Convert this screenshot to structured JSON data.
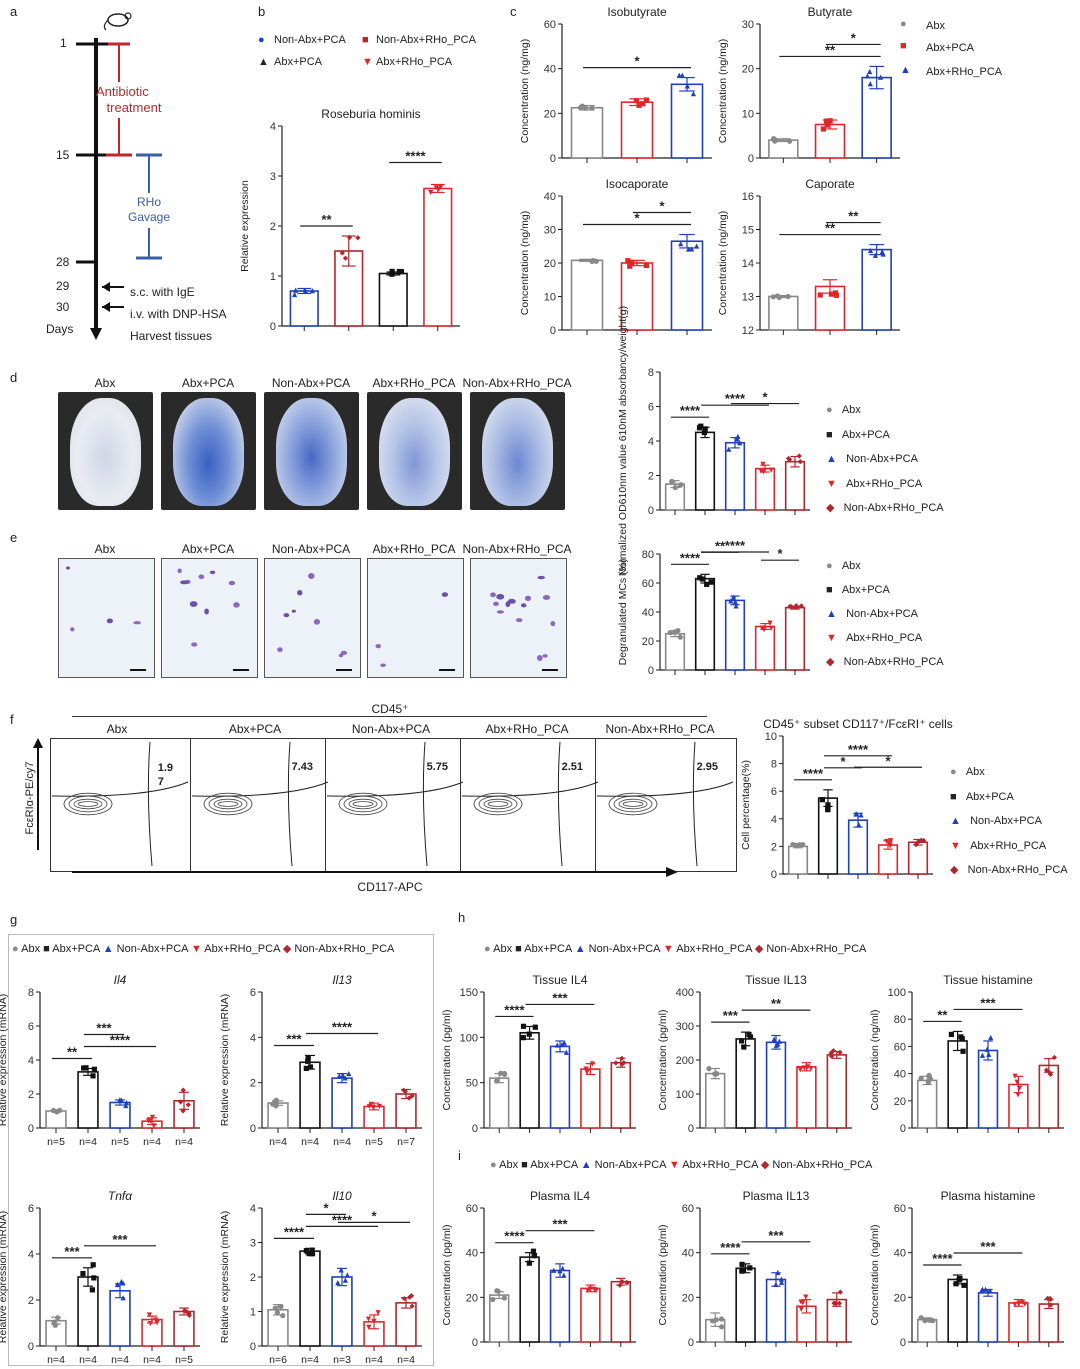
{
  "panel_letters": [
    "a",
    "b",
    "c",
    "d",
    "e",
    "f",
    "g",
    "h",
    "i"
  ],
  "timeline": {
    "days": [
      "1",
      "15",
      "28",
      "29",
      "30"
    ],
    "days_label": "Days",
    "antibiotic": [
      "Antibiotic",
      "treatment"
    ],
    "rho": [
      "RHo",
      "Gavage"
    ],
    "steps": [
      "s.c. with IgE",
      "i.v. with DNP-HSA",
      "Harvest tissues"
    ],
    "colors": {
      "antibiotic": "#c0272d",
      "rho": "#3b5ea8"
    }
  },
  "groups": {
    "abx": {
      "label": "Abx",
      "color": "#888888"
    },
    "abx_pca": {
      "label": "Abx+PCA",
      "color": "#111111"
    },
    "nonabx_pca": {
      "label": "Non-Abx+PCA",
      "color": "#1f3fbf"
    },
    "abx_rho": {
      "label": "Abx+RHo_PCA",
      "color": "#e0262c"
    },
    "nonabx_rho": {
      "label": "Non-Abx+RHo_PCA",
      "color": "#b3262c"
    }
  },
  "panel_b_legend": [
    "Non-Abx+PCA",
    "Non-Abx+RHo_PCA",
    "Abx+PCA",
    "Abx+RHo_PCA"
  ],
  "panel_c_legend": [
    "Abx",
    "Abx+PCA",
    "Abx+RHo_PCA"
  ],
  "panel_d": {
    "labels": [
      "Abx",
      "Abx+PCA",
      "Non-Abx+PCA",
      "Abx+RHo_PCA",
      "Non-Abx+RHo_PCA"
    ]
  },
  "panel_e": {
    "labels": [
      "Abx",
      "Abx+PCA",
      "Non-Abx+PCA",
      "Abx+RHo_PCA",
      "Non-Abx+RHo_PCA"
    ]
  },
  "panel_f": {
    "header": "CD45⁺",
    "labels": [
      "Abx",
      "Abx+PCA",
      "Non-Abx+PCA",
      "Abx+RHo_PCA",
      "Non-Abx+RHo_PCA"
    ],
    "values": [
      "1.9\n7",
      "7.43",
      "5.75",
      "2.51",
      "2.95"
    ],
    "ylabel": "FcεRIα-PE/cy7",
    "xlabel": "CD117-APC"
  },
  "legend_g": [
    "Abx",
    "Abx+PCA",
    "Non-Abx+PCA",
    "Abx+RHo_PCA",
    "Non-Abx+RHo_PCA"
  ],
  "legend_5": [
    "Abx",
    "Abx+PCA",
    "Non-Abx+PCA",
    "Abx+RHo_PCA",
    "Non-Abx+RHo_PCA"
  ],
  "chart_data": [
    {
      "id": "b",
      "type": "bar",
      "title": "Roseburia hominis",
      "ylabel": "Relative expression",
      "ylim": [
        0,
        4
      ],
      "yticks": [
        0,
        1,
        2,
        3,
        4
      ],
      "bars": [
        {
          "g": "nonabx_pca",
          "v": 0.7,
          "e": 0.05
        },
        {
          "g": "nonabx_rho",
          "v": 1.5,
          "e": 0.3
        },
        {
          "g": "abx_pca",
          "v": 1.05,
          "e": 0.03
        },
        {
          "g": "abx_rho",
          "v": 2.75,
          "e": 0.08
        }
      ],
      "sig": [
        {
          "a": 0,
          "b": 1,
          "t": "**"
        },
        {
          "a": 2,
          "b": 3,
          "t": "****"
        }
      ]
    },
    {
      "id": "c1",
      "type": "bar",
      "title": "Isobutyrate",
      "ylabel": "Concentration (ng/mg)",
      "ylim": [
        0,
        60
      ],
      "yticks": [
        0,
        20,
        40,
        60
      ],
      "bars": [
        {
          "g": "abx",
          "v": 22.5,
          "e": 1
        },
        {
          "g": "abx_rho_red",
          "v": 25,
          "e": 1.5
        },
        {
          "g": "abx_rho_blue",
          "v": 33,
          "e": 3
        }
      ],
      "sig": [
        {
          "a": 0,
          "b": 2,
          "t": "*"
        }
      ]
    },
    {
      "id": "c2",
      "type": "bar",
      "title": "Butyrate",
      "ylabel": "Concentration (ng/mg)",
      "ylim": [
        0,
        30
      ],
      "yticks": [
        0,
        10,
        20,
        30
      ],
      "bars": [
        {
          "g": "abx",
          "v": 4,
          "e": 0.3
        },
        {
          "g": "abx_rho_red",
          "v": 7.5,
          "e": 1
        },
        {
          "g": "abx_rho_blue",
          "v": 18,
          "e": 2.5
        }
      ],
      "sig": [
        {
          "a": 0,
          "b": 2,
          "t": "**"
        },
        {
          "a": 1,
          "b": 2,
          "t": "*"
        }
      ]
    },
    {
      "id": "c3",
      "type": "bar",
      "title": "Isocaporate",
      "ylabel": "Concentration (ng/mg)",
      "ylim": [
        0,
        40
      ],
      "yticks": [
        0,
        10,
        20,
        30,
        40
      ],
      "bars": [
        {
          "g": "abx",
          "v": 20.8,
          "e": 0.3
        },
        {
          "g": "abx_rho_red",
          "v": 20,
          "e": 0.8
        },
        {
          "g": "abx_rho_blue",
          "v": 26.5,
          "e": 2
        }
      ],
      "sig": [
        {
          "a": 0,
          "b": 2,
          "t": "*"
        },
        {
          "a": 1,
          "b": 2,
          "t": "*"
        }
      ]
    },
    {
      "id": "c4",
      "type": "bar",
      "title": "Caporate",
      "ylabel": "Concentration (ng/mg)",
      "ylim": [
        12,
        16
      ],
      "yticks": [
        12,
        13,
        14,
        15,
        16
      ],
      "bars": [
        {
          "g": "abx",
          "v": 13,
          "e": 0.03
        },
        {
          "g": "abx_rho_red",
          "v": 13.3,
          "e": 0.2
        },
        {
          "g": "abx_rho_blue",
          "v": 14.4,
          "e": 0.15
        }
      ],
      "sig": [
        {
          "a": 0,
          "b": 2,
          "t": "**"
        },
        {
          "a": 1,
          "b": 2,
          "t": "**"
        }
      ]
    },
    {
      "id": "d",
      "type": "bar",
      "title": "",
      "ylabel": "Normalized OD610nm value 610nM absorbancy/weight(g)",
      "ylim": [
        0,
        8
      ],
      "yticks": [
        0,
        2,
        4,
        6,
        8
      ],
      "bars": [
        {
          "g": "abx",
          "v": 1.5,
          "e": 0.2
        },
        {
          "g": "abx_pca",
          "v": 4.5,
          "e": 0.3
        },
        {
          "g": "nonabx_pca",
          "v": 3.9,
          "e": 0.3
        },
        {
          "g": "abx_rho",
          "v": 2.4,
          "e": 0.2
        },
        {
          "g": "nonabx_rho",
          "v": 2.8,
          "e": 0.3
        }
      ],
      "sig": [
        {
          "a": 0,
          "b": 1,
          "t": "****"
        },
        {
          "a": 1,
          "b": 3,
          "t": "****"
        },
        {
          "a": 2,
          "b": 4,
          "t": "*"
        }
      ]
    },
    {
      "id": "e",
      "type": "bar",
      "title": "",
      "ylabel": "Degranulated MCs (%)",
      "ylim": [
        0,
        80
      ],
      "yticks": [
        0,
        20,
        40,
        60,
        80
      ],
      "bars": [
        {
          "g": "abx",
          "v": 25,
          "e": 2
        },
        {
          "g": "abx_pca",
          "v": 63,
          "e": 3
        },
        {
          "g": "nonabx_pca",
          "v": 48,
          "e": 3
        },
        {
          "g": "abx_rho",
          "v": 30,
          "e": 2
        },
        {
          "g": "nonabx_rho",
          "v": 43,
          "e": 1
        }
      ],
      "sig": [
        {
          "a": 0,
          "b": 1,
          "t": "****"
        },
        {
          "a": 1,
          "b": 2,
          "t": "**"
        },
        {
          "a": 1,
          "b": 3,
          "t": "****"
        },
        {
          "a": 3,
          "b": 4,
          "t": "*"
        }
      ]
    },
    {
      "id": "f",
      "type": "bar",
      "title": "CD45⁺ subset CD117⁺/FcεRI⁺ cells",
      "ylabel": "Cell percentage(%)",
      "ylim": [
        0,
        10
      ],
      "yticks": [
        0,
        2,
        4,
        6,
        8,
        10
      ],
      "bars": [
        {
          "g": "abx",
          "v": 2,
          "e": 0.1
        },
        {
          "g": "abx_pca",
          "v": 5.5,
          "e": 0.6
        },
        {
          "g": "nonabx_pca",
          "v": 3.9,
          "e": 0.5
        },
        {
          "g": "abx_rho",
          "v": 2.1,
          "e": 0.3
        },
        {
          "g": "nonabx_rho",
          "v": 2.3,
          "e": 0.2
        }
      ],
      "sig": [
        {
          "a": 0,
          "b": 1,
          "t": "****"
        },
        {
          "a": 1,
          "b": 2,
          "t": "*"
        },
        {
          "a": 1,
          "b": 3,
          "t": "****"
        },
        {
          "a": 2,
          "b": 4,
          "t": "*"
        }
      ]
    },
    {
      "id": "g1",
      "type": "bar",
      "title": "Il4",
      "italic": true,
      "ylabel": "Relative expression (mRNA)",
      "ylim": [
        0,
        8
      ],
      "yticks": [
        0,
        2,
        4,
        6,
        8
      ],
      "bars": [
        {
          "g": "abx",
          "v": 1,
          "e": 0.05
        },
        {
          "g": "abx_pca",
          "v": 3.3,
          "e": 0.2
        },
        {
          "g": "nonabx_pca",
          "v": 1.5,
          "e": 0.15
        },
        {
          "g": "abx_rho",
          "v": 0.4,
          "e": 0.2
        },
        {
          "g": "nonabx_rho",
          "v": 1.6,
          "e": 0.5
        }
      ],
      "sig": [
        {
          "a": 0,
          "b": 1,
          "t": "**"
        },
        {
          "a": 1,
          "b": 3,
          "t": "****"
        },
        {
          "a": 1,
          "b": 2,
          "t": "***"
        }
      ],
      "ns": [
        "n=5",
        "n=4",
        "n=5",
        "n=4",
        "n=4"
      ]
    },
    {
      "id": "g2",
      "type": "bar",
      "title": "Il13",
      "italic": true,
      "ylabel": "Relative expression (mRNA)",
      "ylim": [
        0,
        6
      ],
      "yticks": [
        0,
        2,
        4,
        6
      ],
      "bars": [
        {
          "g": "abx",
          "v": 1.1,
          "e": 0.1
        },
        {
          "g": "abx_pca",
          "v": 2.9,
          "e": 0.3
        },
        {
          "g": "nonabx_pca",
          "v": 2.2,
          "e": 0.2
        },
        {
          "g": "abx_rho",
          "v": 0.95,
          "e": 0.15
        },
        {
          "g": "nonabx_rho",
          "v": 1.5,
          "e": 0.2
        }
      ],
      "sig": [
        {
          "a": 0,
          "b": 1,
          "t": "***"
        },
        {
          "a": 1,
          "b": 3,
          "t": "****"
        }
      ],
      "ns": [
        "n=4",
        "n=4",
        "n=4",
        "n=5",
        "n=7"
      ]
    },
    {
      "id": "g3",
      "type": "bar",
      "title": "Tnfα",
      "italic": true,
      "ylabel": "Relative expression (mRNA)",
      "ylim": [
        0,
        6
      ],
      "yticks": [
        0,
        2,
        4,
        6
      ],
      "bars": [
        {
          "g": "abx",
          "v": 1.1,
          "e": 0.15
        },
        {
          "g": "abx_pca",
          "v": 3,
          "e": 0.4
        },
        {
          "g": "nonabx_pca",
          "v": 2.4,
          "e": 0.3
        },
        {
          "g": "abx_rho",
          "v": 1.15,
          "e": 0.15
        },
        {
          "g": "nonabx_rho",
          "v": 1.5,
          "e": 0.15
        }
      ],
      "sig": [
        {
          "a": 0,
          "b": 1,
          "t": "***"
        },
        {
          "a": 1,
          "b": 3,
          "t": "***"
        }
      ],
      "ns": [
        "n=4",
        "n=4",
        "n=4",
        "n=4",
        "n=5"
      ]
    },
    {
      "id": "g4",
      "type": "bar",
      "title": "Il10",
      "italic": true,
      "ylabel": "Relative expression (mRNA)",
      "ylim": [
        0,
        4
      ],
      "yticks": [
        0,
        1,
        2,
        3,
        4
      ],
      "bars": [
        {
          "g": "abx",
          "v": 1.05,
          "e": 0.15
        },
        {
          "g": "abx_pca",
          "v": 2.75,
          "e": 0.08
        },
        {
          "g": "nonabx_pca",
          "v": 2,
          "e": 0.25
        },
        {
          "g": "abx_rho",
          "v": 0.7,
          "e": 0.2
        },
        {
          "g": "nonabx_rho",
          "v": 1.25,
          "e": 0.15
        }
      ],
      "sig": [
        {
          "a": 0,
          "b": 1,
          "t": "****"
        },
        {
          "a": 1,
          "b": 3,
          "t": "****"
        },
        {
          "a": 1,
          "b": 2,
          "t": "*"
        },
        {
          "a": 2,
          "b": 4,
          "t": "*"
        }
      ],
      "ns": [
        "n=6",
        "n=4",
        "n=3",
        "n=4",
        "n=4"
      ]
    },
    {
      "id": "h1",
      "type": "bar",
      "title": "Tissue IL4",
      "ylabel": "Concentration (pg/ml)",
      "ylim": [
        0,
        150
      ],
      "yticks": [
        0,
        50,
        100,
        150
      ],
      "bars": [
        {
          "g": "abx",
          "v": 55,
          "e": 5
        },
        {
          "g": "abx_pca",
          "v": 105,
          "e": 7
        },
        {
          "g": "nonabx_pca",
          "v": 90,
          "e": 6
        },
        {
          "g": "abx_rho",
          "v": 65,
          "e": 6
        },
        {
          "g": "nonabx_rho",
          "v": 72,
          "e": 5
        }
      ],
      "sig": [
        {
          "a": 0,
          "b": 1,
          "t": "****"
        },
        {
          "a": 1,
          "b": 3,
          "t": "***"
        }
      ]
    },
    {
      "id": "h2",
      "type": "bar",
      "title": "Tissue IL13",
      "ylabel": "Concentration (pg/ml)",
      "ylim": [
        0,
        400
      ],
      "yticks": [
        0,
        100,
        200,
        300,
        400
      ],
      "bars": [
        {
          "g": "abx",
          "v": 160,
          "e": 15
        },
        {
          "g": "abx_pca",
          "v": 262,
          "e": 20
        },
        {
          "g": "nonabx_pca",
          "v": 252,
          "e": 20
        },
        {
          "g": "abx_rho",
          "v": 180,
          "e": 12
        },
        {
          "g": "nonabx_rho",
          "v": 215,
          "e": 10
        }
      ],
      "sig": [
        {
          "a": 0,
          "b": 1,
          "t": "***"
        },
        {
          "a": 1,
          "b": 3,
          "t": "**"
        }
      ]
    },
    {
      "id": "h3",
      "type": "bar",
      "title": "Tissue histamine",
      "ylabel": "Concentration (ng/ml)",
      "ylim": [
        0,
        100
      ],
      "yticks": [
        0,
        20,
        40,
        60,
        80,
        100
      ],
      "bars": [
        {
          "g": "abx",
          "v": 35,
          "e": 3
        },
        {
          "g": "abx_pca",
          "v": 64,
          "e": 7
        },
        {
          "g": "nonabx_pca",
          "v": 57,
          "e": 7
        },
        {
          "g": "abx_rho",
          "v": 32,
          "e": 6
        },
        {
          "g": "nonabx_rho",
          "v": 46,
          "e": 5
        }
      ],
      "sig": [
        {
          "a": 0,
          "b": 1,
          "t": "**"
        },
        {
          "a": 1,
          "b": 3,
          "t": "***"
        }
      ]
    },
    {
      "id": "i1",
      "type": "bar",
      "title": "Plasma IL4",
      "ylabel": "Concentration (pg/ml)",
      "ylim": [
        0,
        60
      ],
      "yticks": [
        0,
        20,
        40,
        60
      ],
      "bars": [
        {
          "g": "abx",
          "v": 21,
          "e": 1.5
        },
        {
          "g": "abx_pca",
          "v": 38,
          "e": 2
        },
        {
          "g": "nonabx_pca",
          "v": 32,
          "e": 3
        },
        {
          "g": "abx_rho",
          "v": 24,
          "e": 1.5
        },
        {
          "g": "nonabx_rho",
          "v": 27,
          "e": 1.5
        }
      ],
      "sig": [
        {
          "a": 0,
          "b": 1,
          "t": "****"
        },
        {
          "a": 1,
          "b": 3,
          "t": "***"
        }
      ]
    },
    {
      "id": "i2",
      "type": "bar",
      "title": "Plasma IL13",
      "ylabel": "Concentration (pg/ml)",
      "ylim": [
        0,
        60
      ],
      "yticks": [
        0,
        20,
        40,
        60
      ],
      "bars": [
        {
          "g": "abx",
          "v": 10,
          "e": 3
        },
        {
          "g": "abx_pca",
          "v": 33,
          "e": 2
        },
        {
          "g": "nonabx_pca",
          "v": 28,
          "e": 3
        },
        {
          "g": "abx_rho",
          "v": 16,
          "e": 3
        },
        {
          "g": "nonabx_rho",
          "v": 19,
          "e": 3
        }
      ],
      "sig": [
        {
          "a": 0,
          "b": 1,
          "t": "****"
        },
        {
          "a": 1,
          "b": 3,
          "t": "***"
        }
      ]
    },
    {
      "id": "i3",
      "type": "bar",
      "title": "Plasma histamine",
      "ylabel": "Concentration (ng/ml)",
      "ylim": [
        0,
        60
      ],
      "yticks": [
        0,
        20,
        40,
        60
      ],
      "bars": [
        {
          "g": "abx",
          "v": 10,
          "e": 0.8
        },
        {
          "g": "abx_pca",
          "v": 28,
          "e": 2
        },
        {
          "g": "nonabx_pca",
          "v": 22,
          "e": 1.5
        },
        {
          "g": "abx_rho",
          "v": 17.5,
          "e": 1.5
        },
        {
          "g": "nonabx_rho",
          "v": 17,
          "e": 2
        }
      ],
      "sig": [
        {
          "a": 0,
          "b": 1,
          "t": "****"
        },
        {
          "a": 1,
          "b": 3,
          "t": "***"
        }
      ]
    }
  ]
}
